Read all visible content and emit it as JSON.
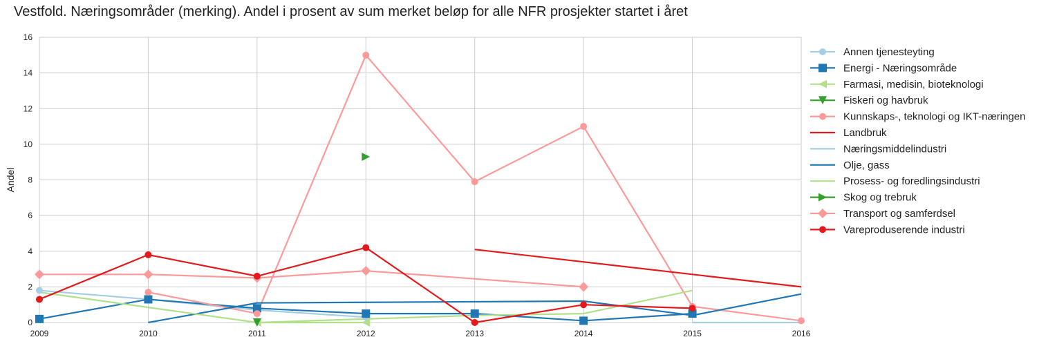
{
  "chart_data": {
    "type": "line",
    "title": "Vestfold. Næringsområder (merking). Andel i prosent av sum merket beløp for alle NFR prosjekter startet i året",
    "xlabel": "",
    "ylabel": "Andel",
    "x": [
      2009,
      2010,
      2011,
      2012,
      2013,
      2014,
      2015,
      2016
    ],
    "xlim": [
      2009,
      2016
    ],
    "ylim": [
      0,
      16
    ],
    "yticks": [
      0,
      2,
      4,
      6,
      8,
      10,
      12,
      14,
      16
    ],
    "grid": true,
    "legend_position": "outside-right",
    "series": [
      {
        "name": "Annen tjenesteyting",
        "color": "#a6cee3",
        "marker": "circle",
        "values": [
          1.8,
          1.3,
          0.7,
          0.3,
          null,
          null,
          null,
          null
        ]
      },
      {
        "name": "Energi - Næringsområde",
        "color": "#1f78b4",
        "marker": "square",
        "values": [
          0.2,
          1.3,
          0.8,
          0.5,
          0.5,
          0.1,
          0.5,
          null
        ]
      },
      {
        "name": "Farmasi, medisin, bioteknologi",
        "color": "#b2df8a",
        "marker": "triangle-left",
        "values": [
          null,
          null,
          0.0,
          0.0,
          null,
          null,
          null,
          null
        ]
      },
      {
        "name": "Fiskeri og havbruk",
        "color": "#33a02c",
        "marker": "triangle-down",
        "values": [
          null,
          null,
          0.0,
          null,
          null,
          null,
          null,
          null
        ]
      },
      {
        "name": "Kunnskaps-, teknologi og IKT-næringen",
        "color": "#fb9a99",
        "marker": "circle",
        "values": [
          null,
          1.7,
          0.5,
          15.0,
          7.9,
          11.0,
          0.9,
          0.1
        ]
      },
      {
        "name": "Landbruk",
        "color": "#e31a1c",
        "marker": "none",
        "values": [
          null,
          null,
          null,
          null,
          4.1,
          null,
          null,
          2.0
        ]
      },
      {
        "name": "Næringsmiddelindustri",
        "color": "#a6cee3",
        "marker": "none",
        "values": [
          null,
          null,
          null,
          null,
          null,
          null,
          0.0,
          0.0
        ]
      },
      {
        "name": "Olje, gass",
        "color": "#1f78b4",
        "marker": "none",
        "values": [
          null,
          0.0,
          1.1,
          null,
          null,
          1.2,
          0.4,
          1.6
        ]
      },
      {
        "name": "Prosess- og foredlingsindustri",
        "color": "#b2df8a",
        "marker": "none",
        "values": [
          1.7,
          null,
          0.0,
          0.2,
          0.4,
          0.5,
          1.8,
          null
        ]
      },
      {
        "name": "Skog og trebruk",
        "color": "#33a02c",
        "marker": "triangle-right",
        "values": [
          null,
          null,
          null,
          9.3,
          null,
          null,
          null,
          null
        ]
      },
      {
        "name": "Transport og samferdsel",
        "color": "#fb9a99",
        "marker": "diamond",
        "values": [
          2.7,
          2.7,
          2.5,
          2.9,
          null,
          2.0,
          null,
          null
        ]
      },
      {
        "name": "Vareproduserende industri",
        "color": "#e31a1c",
        "marker": "circle",
        "values": [
          1.3,
          3.8,
          2.6,
          4.2,
          0.0,
          1.0,
          0.8,
          null
        ]
      }
    ]
  }
}
